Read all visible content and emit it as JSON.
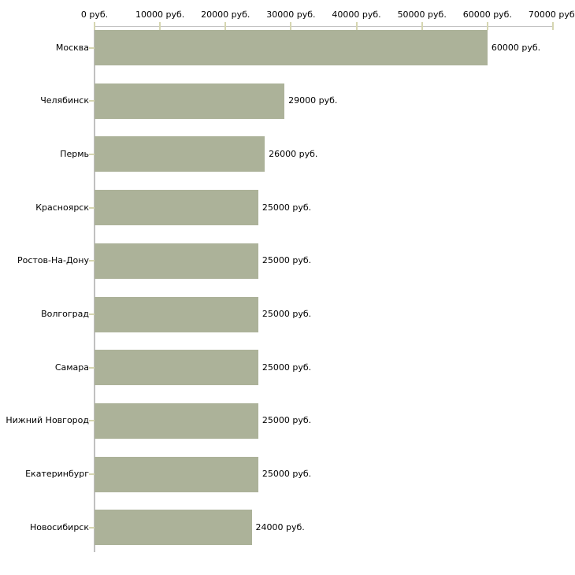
{
  "chart_data": {
    "type": "bar",
    "orientation": "horizontal",
    "categories": [
      "Москва",
      "Челябинск",
      "Пермь",
      "Красноярск",
      "Ростов-На-Дону",
      "Волгоград",
      "Самара",
      "Нижний Новгород",
      "Екатеринбург",
      "Новосибирск"
    ],
    "values": [
      60000,
      29000,
      26000,
      25000,
      25000,
      25000,
      25000,
      25000,
      25000,
      24000
    ],
    "value_labels": [
      "60000 руб.",
      "29000 руб.",
      "26000 руб.",
      "25000 руб.",
      "25000 руб.",
      "25000 руб.",
      "25000 руб.",
      "25000 руб.",
      "25000 руб.",
      "24000 руб."
    ],
    "x_ticks": [
      0,
      10000,
      20000,
      30000,
      40000,
      50000,
      60000,
      70000
    ],
    "x_tick_labels": [
      "0 руб.",
      "10000 руб.",
      "20000 руб.",
      "30000 руб.",
      "40000 руб.",
      "50000 руб.",
      "60000 руб.",
      "70000 руб."
    ],
    "xlim": [
      0,
      70000
    ],
    "xlabel": "",
    "ylabel": "",
    "grid": false,
    "legend": false,
    "axis_position": "top",
    "colors": {
      "bar": "#acb299",
      "axis_line": "#c0c0c0",
      "tick_mark": "#d6d6b1",
      "text": "#000000",
      "background": "#ffffff"
    }
  }
}
